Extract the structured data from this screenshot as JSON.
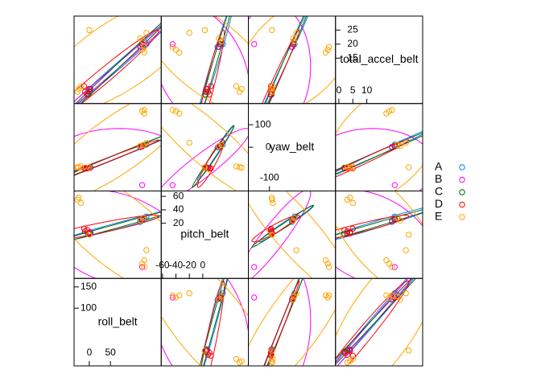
{
  "chart_data": {
    "type": "scatter-matrix",
    "variables": [
      {
        "name": "roll_belt",
        "lim": [
          -36,
          170
        ],
        "ticks": [
          0,
          50,
          100,
          150
        ]
      },
      {
        "name": "pitch_belt",
        "lim": [
          -62,
          68
        ],
        "ticks": [
          -60,
          -40,
          -20,
          0,
          20,
          40,
          60
        ]
      },
      {
        "name": "yaw_belt",
        "lim": [
          -194,
          194
        ],
        "ticks": [
          -100,
          0,
          100
        ]
      },
      {
        "name": "total_accel_belt",
        "lim": [
          -1.2,
          30
        ],
        "ticks": [
          0,
          5,
          10,
          15,
          20,
          25
        ]
      }
    ],
    "ellipses": true,
    "legend": "right",
    "series": [
      {
        "name": "A",
        "color": "#0080ff",
        "points": [
          [
            125,
            25,
            5,
            20
          ],
          [
            130,
            28,
            10,
            21
          ],
          [
            120,
            22,
            0,
            19
          ],
          [
            1,
            5,
            -88,
            3
          ],
          [
            3,
            6,
            -90,
            4
          ],
          [
            135,
            30,
            12,
            20
          ]
        ]
      },
      {
        "name": "B",
        "color": "#ff00ff",
        "points": [
          [
            125,
            -45,
            -168,
            20
          ],
          [
            0,
            4,
            -90,
            3
          ],
          [
            122,
            24,
            2,
            19
          ],
          [
            2,
            7,
            -92,
            4
          ]
        ]
      },
      {
        "name": "C",
        "color": "#006400",
        "points": [
          [
            124,
            26,
            6,
            20
          ],
          [
            1,
            5,
            -89,
            3
          ],
          [
            -2,
            4,
            -91,
            2
          ],
          [
            128,
            27,
            8,
            21
          ]
        ]
      },
      {
        "name": "D",
        "color": "#ff0000",
        "points": [
          [
            -10,
            8,
            -92,
            3
          ],
          [
            -5,
            10,
            -94,
            2
          ],
          [
            0,
            5,
            -90,
            4
          ],
          [
            -12,
            12,
            -93,
            5
          ],
          [
            125,
            26,
            4,
            20
          ]
        ]
      },
      {
        "name": "E",
        "color": "#ffa500",
        "points": [
          [
            -28,
            55,
            -88,
            3
          ],
          [
            -25,
            58,
            -90,
            4
          ],
          [
            125,
            -40,
            160,
            18
          ],
          [
            130,
            -45,
            165,
            19
          ],
          [
            120,
            24,
            5,
            22
          ],
          [
            128,
            28,
            10,
            21
          ],
          [
            0,
            3,
            -89,
            25
          ],
          [
            130,
            -35,
            150,
            17
          ],
          [
            -20,
            50,
            -85,
            5
          ],
          [
            135,
            -20,
            20,
            24
          ]
        ]
      }
    ]
  }
}
